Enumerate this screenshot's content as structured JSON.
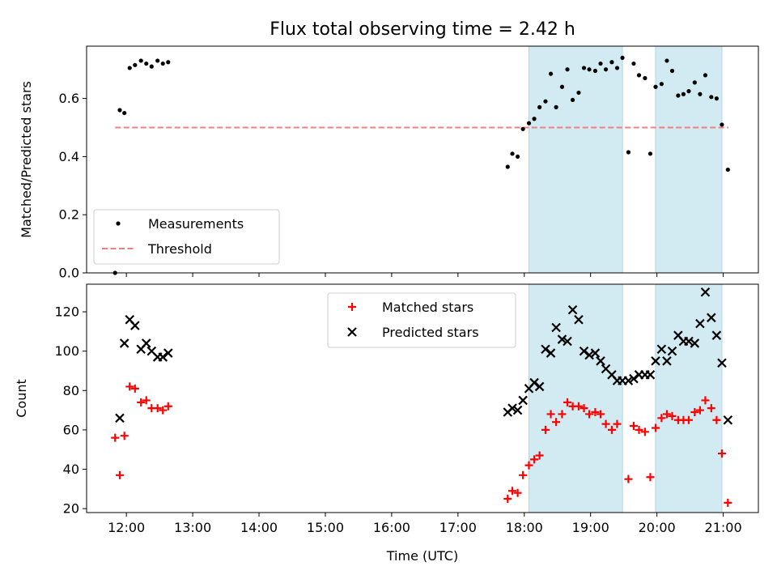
{
  "chart_data": {
    "title": "Flux total observing time = 2.42 h",
    "xlabel": "Time (UTC)",
    "xtick_labels": [
      "12:00",
      "13:00",
      "14:00",
      "15:00",
      "16:00",
      "17:00",
      "18:00",
      "19:00",
      "20:00",
      "21:00"
    ],
    "xlim_hours": [
      11.4,
      21.53
    ],
    "shaded_intervals_hours": [
      [
        18.07,
        19.48
      ],
      [
        19.98,
        20.98
      ]
    ],
    "shade_color": "#add8e6",
    "panels": [
      {
        "type": "scatter",
        "ylabel": "Matched/Predicted stars",
        "ylim": [
          0,
          0.78
        ],
        "yticks": [
          0.0,
          0.2,
          0.4,
          0.6
        ],
        "ytick_labels": [
          "0.0",
          "0.2",
          "0.4",
          "0.6"
        ],
        "legend_position": "lower-left",
        "threshold": {
          "name": "Threshold",
          "value": 0.5,
          "x_range_hours": [
            11.83,
            21.08
          ],
          "color": "#f08080"
        },
        "series": [
          {
            "name": "Measurements",
            "marker": "dot",
            "color": "#000000",
            "points": [
              [
                11.83,
                0.0
              ],
              [
                11.9,
                0.56
              ],
              [
                11.97,
                0.55
              ],
              [
                12.05,
                0.705
              ],
              [
                12.13,
                0.715
              ],
              [
                12.22,
                0.73
              ],
              [
                12.3,
                0.72
              ],
              [
                12.38,
                0.71
              ],
              [
                12.47,
                0.73
              ],
              [
                12.55,
                0.72
              ],
              [
                12.63,
                0.725
              ],
              [
                17.75,
                0.365
              ],
              [
                17.82,
                0.41
              ],
              [
                17.9,
                0.4
              ],
              [
                17.98,
                0.495
              ],
              [
                18.07,
                0.515
              ],
              [
                18.15,
                0.53
              ],
              [
                18.23,
                0.57
              ],
              [
                18.32,
                0.59
              ],
              [
                18.4,
                0.685
              ],
              [
                18.48,
                0.57
              ],
              [
                18.57,
                0.64
              ],
              [
                18.65,
                0.7
              ],
              [
                18.73,
                0.595
              ],
              [
                18.82,
                0.62
              ],
              [
                18.9,
                0.705
              ],
              [
                18.98,
                0.7
              ],
              [
                19.07,
                0.695
              ],
              [
                19.15,
                0.72
              ],
              [
                19.23,
                0.7
              ],
              [
                19.32,
                0.725
              ],
              [
                19.4,
                0.705
              ],
              [
                19.48,
                0.74
              ],
              [
                19.57,
                0.415
              ],
              [
                19.65,
                0.72
              ],
              [
                19.73,
                0.68
              ],
              [
                19.82,
                0.67
              ],
              [
                19.9,
                0.41
              ],
              [
                19.98,
                0.64
              ],
              [
                20.07,
                0.65
              ],
              [
                20.15,
                0.73
              ],
              [
                20.23,
                0.695
              ],
              [
                20.32,
                0.61
              ],
              [
                20.4,
                0.615
              ],
              [
                20.48,
                0.625
              ],
              [
                20.57,
                0.655
              ],
              [
                20.65,
                0.615
              ],
              [
                20.73,
                0.68
              ],
              [
                20.82,
                0.605
              ],
              [
                20.9,
                0.6
              ],
              [
                20.98,
                0.51
              ],
              [
                21.07,
                0.355
              ]
            ]
          }
        ]
      },
      {
        "type": "scatter",
        "ylabel": "Count",
        "ylim": [
          18,
          134
        ],
        "yticks": [
          20,
          40,
          60,
          80,
          100,
          120
        ],
        "ytick_labels": [
          "20",
          "40",
          "60",
          "80",
          "100",
          "120"
        ],
        "legend_position": "upper-center",
        "series": [
          {
            "name": "Matched stars",
            "marker": "plus",
            "color": "#ff0000",
            "points": [
              [
                11.83,
                56
              ],
              [
                11.9,
                37
              ],
              [
                11.97,
                57
              ],
              [
                12.05,
                82
              ],
              [
                12.13,
                81
              ],
              [
                12.22,
                74
              ],
              [
                12.3,
                75
              ],
              [
                12.38,
                71
              ],
              [
                12.47,
                71
              ],
              [
                12.55,
                70
              ],
              [
                12.63,
                72
              ],
              [
                17.75,
                25
              ],
              [
                17.82,
                29
              ],
              [
                17.9,
                28
              ],
              [
                17.98,
                37
              ],
              [
                18.07,
                42
              ],
              [
                18.15,
                45
              ],
              [
                18.23,
                47
              ],
              [
                18.32,
                60
              ],
              [
                18.4,
                68
              ],
              [
                18.48,
                64
              ],
              [
                18.57,
                68
              ],
              [
                18.65,
                74
              ],
              [
                18.73,
                72
              ],
              [
                18.82,
                72
              ],
              [
                18.9,
                71
              ],
              [
                18.98,
                68
              ],
              [
                19.07,
                69
              ],
              [
                19.15,
                68
              ],
              [
                19.23,
                63
              ],
              [
                19.32,
                60
              ],
              [
                19.4,
                63
              ],
              [
                19.57,
                35
              ],
              [
                19.65,
                62
              ],
              [
                19.73,
                60
              ],
              [
                19.82,
                59
              ],
              [
                19.9,
                36
              ],
              [
                19.98,
                61
              ],
              [
                20.07,
                66
              ],
              [
                20.15,
                68
              ],
              [
                20.23,
                67
              ],
              [
                20.32,
                65
              ],
              [
                20.4,
                65
              ],
              [
                20.48,
                65
              ],
              [
                20.57,
                69
              ],
              [
                20.65,
                70
              ],
              [
                20.73,
                75
              ],
              [
                20.82,
                71
              ],
              [
                20.9,
                65
              ],
              [
                20.98,
                48
              ],
              [
                21.07,
                23
              ]
            ]
          },
          {
            "name": "Predicted stars",
            "marker": "x",
            "color": "#000000",
            "points": [
              [
                11.9,
                66
              ],
              [
                11.97,
                104
              ],
              [
                12.05,
                116
              ],
              [
                12.13,
                113
              ],
              [
                12.22,
                101
              ],
              [
                12.3,
                104
              ],
              [
                12.38,
                100
              ],
              [
                12.47,
                97
              ],
              [
                12.55,
                97
              ],
              [
                12.63,
                99
              ],
              [
                17.75,
                69
              ],
              [
                17.82,
                71
              ],
              [
                17.9,
                70
              ],
              [
                17.98,
                75
              ],
              [
                18.07,
                81
              ],
              [
                18.15,
                84
              ],
              [
                18.23,
                82
              ],
              [
                18.32,
                101
              ],
              [
                18.4,
                99
              ],
              [
                18.48,
                112
              ],
              [
                18.57,
                106
              ],
              [
                18.65,
                105
              ],
              [
                18.73,
                121
              ],
              [
                18.82,
                116
              ],
              [
                18.9,
                100
              ],
              [
                18.98,
                98
              ],
              [
                19.07,
                99
              ],
              [
                19.15,
                95
              ],
              [
                19.23,
                91
              ],
              [
                19.32,
                88
              ],
              [
                19.4,
                85
              ],
              [
                19.48,
                85
              ],
              [
                19.57,
                85
              ],
              [
                19.65,
                86
              ],
              [
                19.73,
                88
              ],
              [
                19.82,
                88
              ],
              [
                19.9,
                88
              ],
              [
                19.98,
                95
              ],
              [
                20.07,
                101
              ],
              [
                20.15,
                95
              ],
              [
                20.23,
                100
              ],
              [
                20.32,
                108
              ],
              [
                20.4,
                105
              ],
              [
                20.48,
                105
              ],
              [
                20.57,
                104
              ],
              [
                20.65,
                114
              ],
              [
                20.73,
                130
              ],
              [
                20.82,
                117
              ],
              [
                20.9,
                108
              ],
              [
                20.98,
                94
              ],
              [
                21.07,
                65
              ]
            ]
          }
        ]
      }
    ]
  }
}
